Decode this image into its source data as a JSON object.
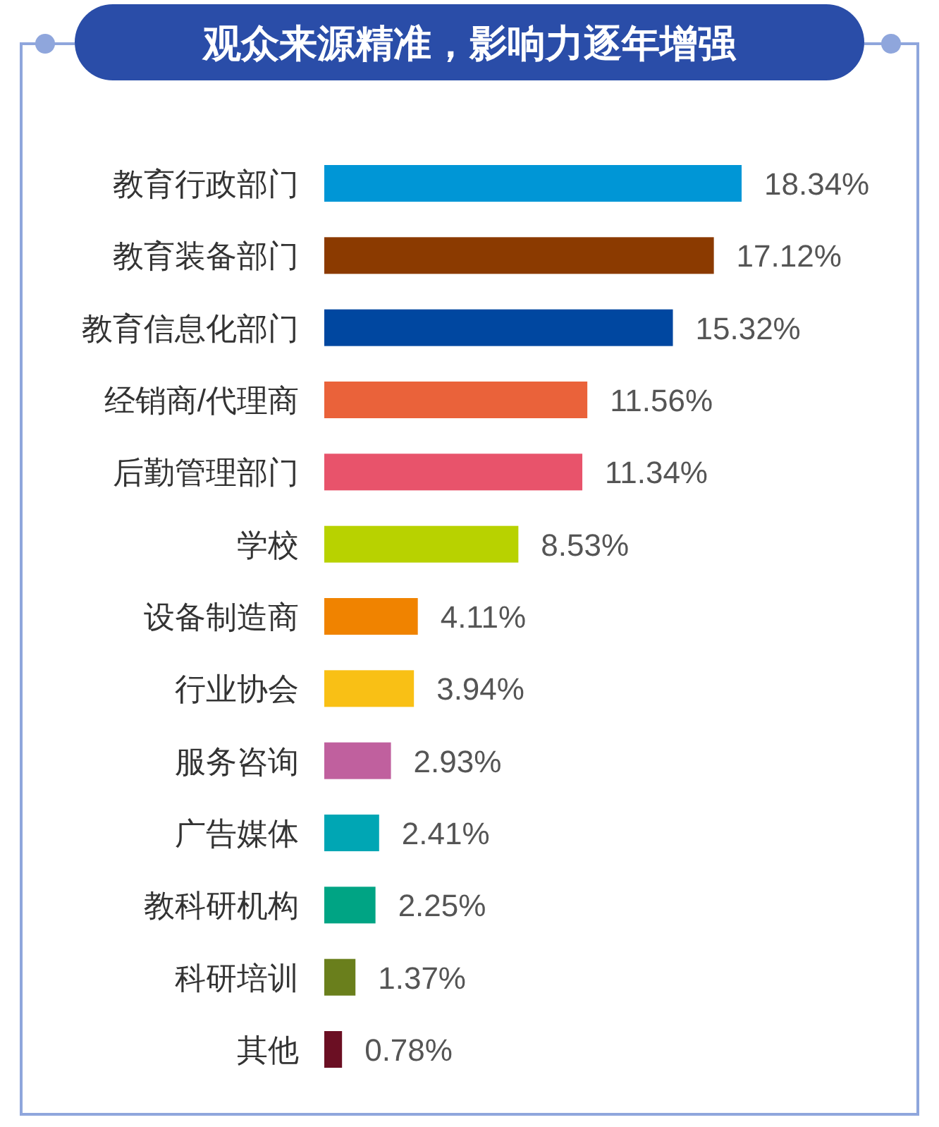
{
  "chart_data": {
    "type": "bar",
    "orientation": "horizontal",
    "title": "观众来源精准，影响力逐年增强",
    "categories": [
      "教育行政部门",
      "教育装备部门",
      "教育信息化部门",
      "经销商/代理商",
      "后勤管理部门",
      "学校",
      "设备制造商",
      "行业协会",
      "服务咨询",
      "广告媒体",
      "教科研机构",
      "科研培训",
      "其他"
    ],
    "values": [
      18.34,
      17.12,
      15.32,
      11.56,
      11.34,
      8.53,
      4.11,
      3.94,
      2.93,
      2.41,
      2.25,
      1.37,
      0.78
    ],
    "value_labels": [
      "18.34%",
      "17.12%",
      "15.32%",
      "11.56%",
      "11.34%",
      "8.53%",
      "4.11%",
      "3.94%",
      "2.93%",
      "2.41%",
      "2.25%",
      "1.37%",
      "0.78%"
    ],
    "colors": [
      "#0096d6",
      "#8b3a00",
      "#0047a0",
      "#ea623a",
      "#e8536b",
      "#b8d200",
      "#f08300",
      "#f9c015",
      "#c0609e",
      "#00a6b4",
      "#00a484",
      "#6a7f1c",
      "#6b0f23"
    ]
  }
}
